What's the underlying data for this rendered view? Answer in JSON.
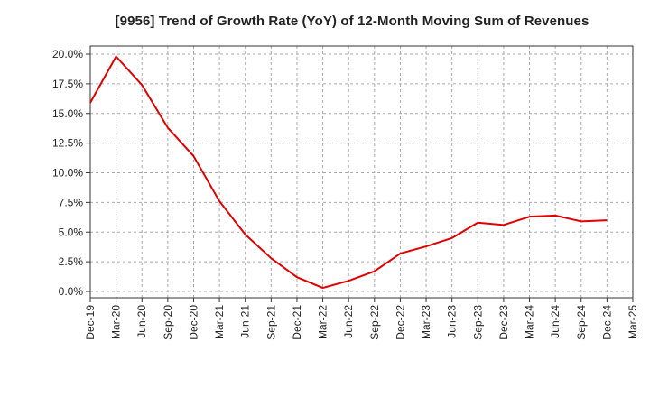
{
  "chart_data": {
    "type": "line",
    "title": "[9956]  Trend of Growth Rate (YoY) of 12-Month Moving Sum of Revenues",
    "xlabel": "",
    "ylabel": "",
    "ylim": [
      0,
      20
    ],
    "grid": true,
    "legend": "none",
    "x_tick_labels": [
      "Dec-19",
      "Mar-20",
      "Jun-20",
      "Sep-20",
      "Dec-20",
      "Mar-21",
      "Jun-21",
      "Sep-21",
      "Dec-21",
      "Mar-22",
      "Jun-22",
      "Sep-22",
      "Dec-22",
      "Mar-23",
      "Jun-23",
      "Sep-23",
      "Dec-23",
      "Mar-24",
      "Jun-24",
      "Sep-24",
      "Dec-24",
      "Mar-25"
    ],
    "y_tick_labels": [
      "0.0%",
      "2.5%",
      "5.0%",
      "7.5%",
      "10.0%",
      "12.5%",
      "15.0%",
      "17.5%",
      "20.0%"
    ],
    "y_ticks": [
      0,
      2.5,
      5,
      7.5,
      10,
      12.5,
      15,
      17.5,
      20
    ],
    "x": [
      "Dec-19",
      "Mar-20",
      "Jun-20",
      "Sep-20",
      "Dec-20",
      "Mar-21",
      "Jun-21",
      "Sep-21",
      "Dec-21",
      "Mar-22",
      "Jun-22",
      "Sep-22",
      "Dec-22",
      "Mar-23",
      "Jun-23",
      "Sep-23",
      "Dec-23",
      "Mar-24",
      "Jun-24",
      "Sep-24",
      "Dec-24"
    ],
    "series": [
      {
        "values": [
          15.9,
          19.8,
          17.4,
          13.8,
          11.4,
          7.6,
          4.8,
          2.8,
          1.2,
          0.3,
          0.9,
          1.7,
          3.2,
          3.8,
          4.5,
          5.8,
          5.6,
          6.3,
          6.4,
          5.9,
          6.0
        ]
      }
    ],
    "line_color": "#e00000",
    "grid_color": "#aaaaaa"
  }
}
